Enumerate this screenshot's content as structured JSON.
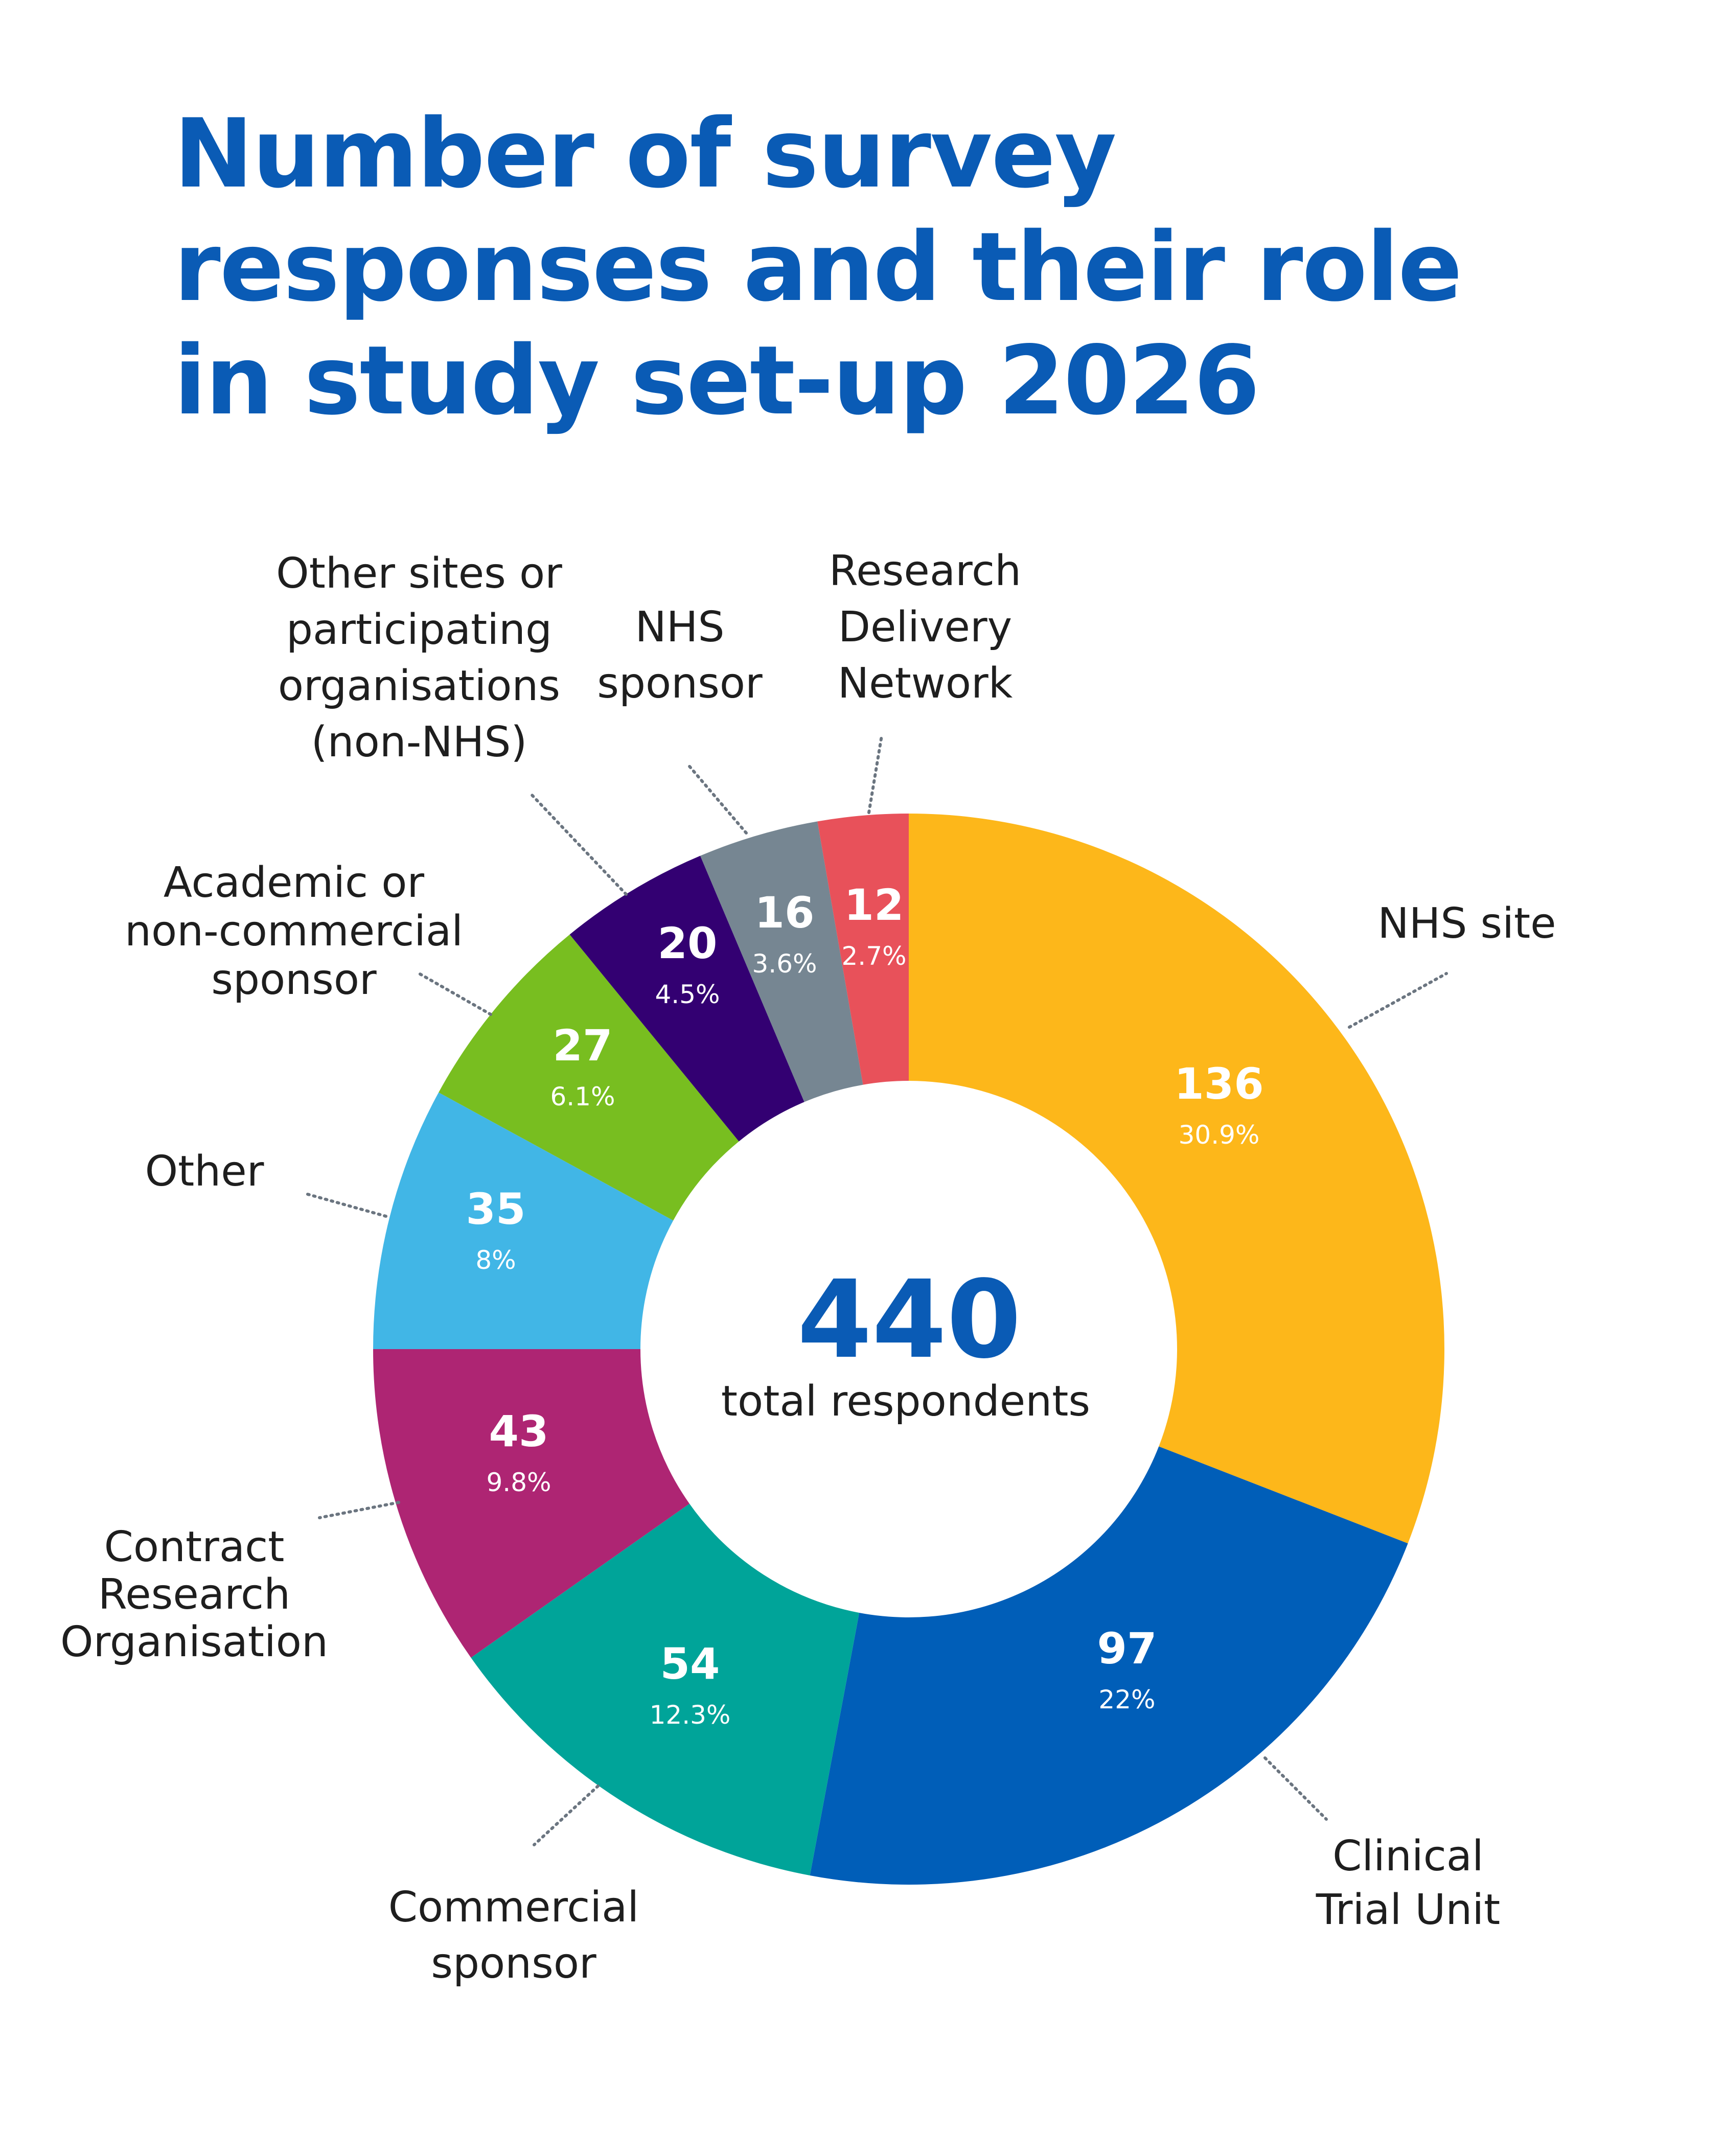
{
  "title_lines": [
    "Number of survey",
    "responses and their role",
    "in study set-up 2026"
  ],
  "center": {
    "total_value": "440",
    "total_label": "total respondents"
  },
  "chart_data": {
    "type": "pie",
    "variant": "donut",
    "title": "Number of survey responses and their role in study set-up 2026",
    "total": 440,
    "slices": [
      {
        "label": "NHS site",
        "label_lines": [
          "NHS site"
        ],
        "value": 136,
        "percent": "30.9%",
        "color": "#fdb71a"
      },
      {
        "label": "Clinical Trial Unit",
        "label_lines": [
          "Clinical",
          "Trial Unit"
        ],
        "value": 97,
        "percent": "22%",
        "color": "#005eb8"
      },
      {
        "label": "Commercial sponsor",
        "label_lines": [
          "Commercial",
          "sponsor"
        ],
        "value": 54,
        "percent": "12.3%",
        "color": "#00a499"
      },
      {
        "label": "Contract Research Organisation",
        "label_lines": [
          "Contract",
          "Research",
          "Organisation"
        ],
        "value": 43,
        "percent": "9.8%",
        "color": "#ae2573"
      },
      {
        "label": "Other",
        "label_lines": [
          "Other"
        ],
        "value": 35,
        "percent": "8%",
        "color": "#41b6e6"
      },
      {
        "label": "Academic or non-commercial sponsor",
        "label_lines": [
          "Academic or",
          "non-commercial",
          "sponsor"
        ],
        "value": 27,
        "percent": "6.1%",
        "color": "#78be20"
      },
      {
        "label": "Other sites or participating organisations (non-NHS)",
        "label_lines": [
          "Other sites or",
          "participating",
          "organisations",
          "(non-NHS)"
        ],
        "value": 20,
        "percent": "4.5%",
        "color": "#330072"
      },
      {
        "label": "NHS sponsor",
        "label_lines": [
          "NHS",
          "sponsor"
        ],
        "value": 16,
        "percent": "3.6%",
        "color": "#768692"
      },
      {
        "label": "Research Delivery Network",
        "label_lines": [
          "Research",
          "Delivery",
          "Network"
        ],
        "value": 12,
        "percent": "2.7%",
        "color": "#e8515a"
      }
    ]
  }
}
